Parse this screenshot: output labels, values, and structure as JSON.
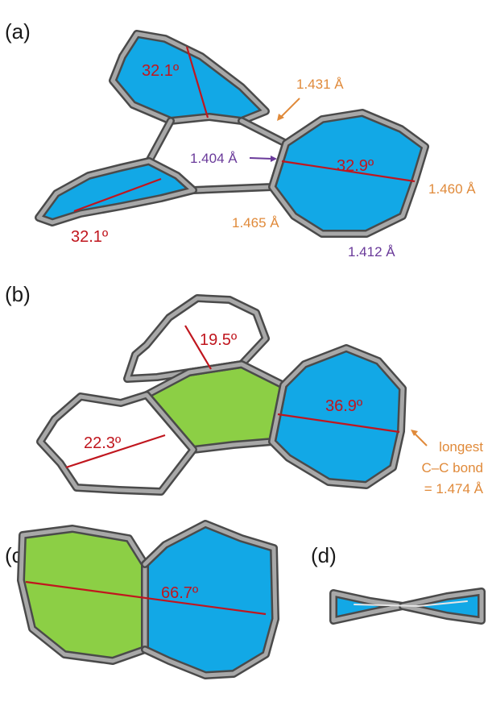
{
  "panels": {
    "a": {
      "label": "(a)",
      "angles": [
        "32.1º",
        "32.9º",
        "32.1º"
      ],
      "bonds": {
        "b1431": "1.431 Å",
        "b1404": "1.404 Å",
        "b1460": "1.460 Å",
        "b1465": "1.465 Å",
        "b1412": "1.412 Å"
      }
    },
    "b": {
      "label": "(b)",
      "angles": [
        "19.5º",
        "36.9º",
        "22.3º"
      ],
      "note": [
        "longest",
        "C–C bond",
        "= 1.474 Å"
      ]
    },
    "c": {
      "label": "(c)",
      "angles": [
        "66.7º"
      ]
    },
    "d": {
      "label": "(d)"
    }
  },
  "colors": {
    "blue": "#12a8e6",
    "green": "#8ccf45",
    "angle_red": "#c0161e",
    "bond_orange": "#e08a3a",
    "bond_purple": "#6a3a9a"
  }
}
